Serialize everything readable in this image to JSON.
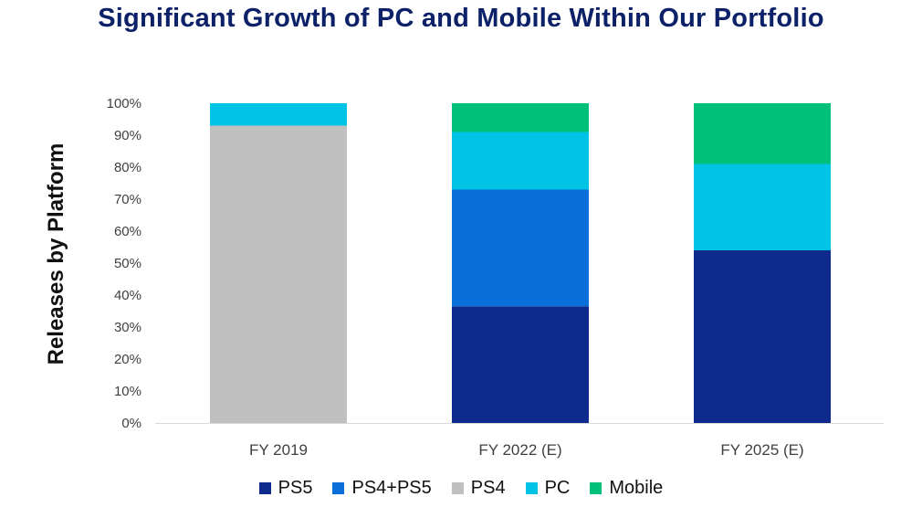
{
  "title": "Significant Growth of PC and Mobile Within Our Portfolio",
  "chart_data": {
    "type": "bar",
    "stacked": true,
    "title": "Significant Growth of PC and Mobile Within Our Portfolio",
    "xlabel": "",
    "ylabel": "Releases by Platform",
    "ylim": [
      0,
      100
    ],
    "yticks": [
      "0%",
      "10%",
      "20%",
      "30%",
      "40%",
      "50%",
      "60%",
      "70%",
      "80%",
      "90%",
      "100%"
    ],
    "categories": [
      "FY 2019",
      "FY 2022 (E)",
      "FY 2025 (E)"
    ],
    "series": [
      {
        "name": "PS5",
        "color": "#0d2a8c",
        "values": [
          0,
          36.5,
          54
        ]
      },
      {
        "name": "PS4+PS5",
        "color": "#0a6fd8",
        "values": [
          0,
          36.5,
          0
        ]
      },
      {
        "name": "PS4",
        "color": "#c0c0c0",
        "values": [
          93,
          0,
          0
        ]
      },
      {
        "name": "PC",
        "color": "#00c3e6",
        "values": [
          7,
          18,
          27
        ]
      },
      {
        "name": "Mobile",
        "color": "#00c07a",
        "values": [
          0,
          9,
          19
        ]
      }
    ],
    "legend_position": "bottom",
    "grid": false
  }
}
